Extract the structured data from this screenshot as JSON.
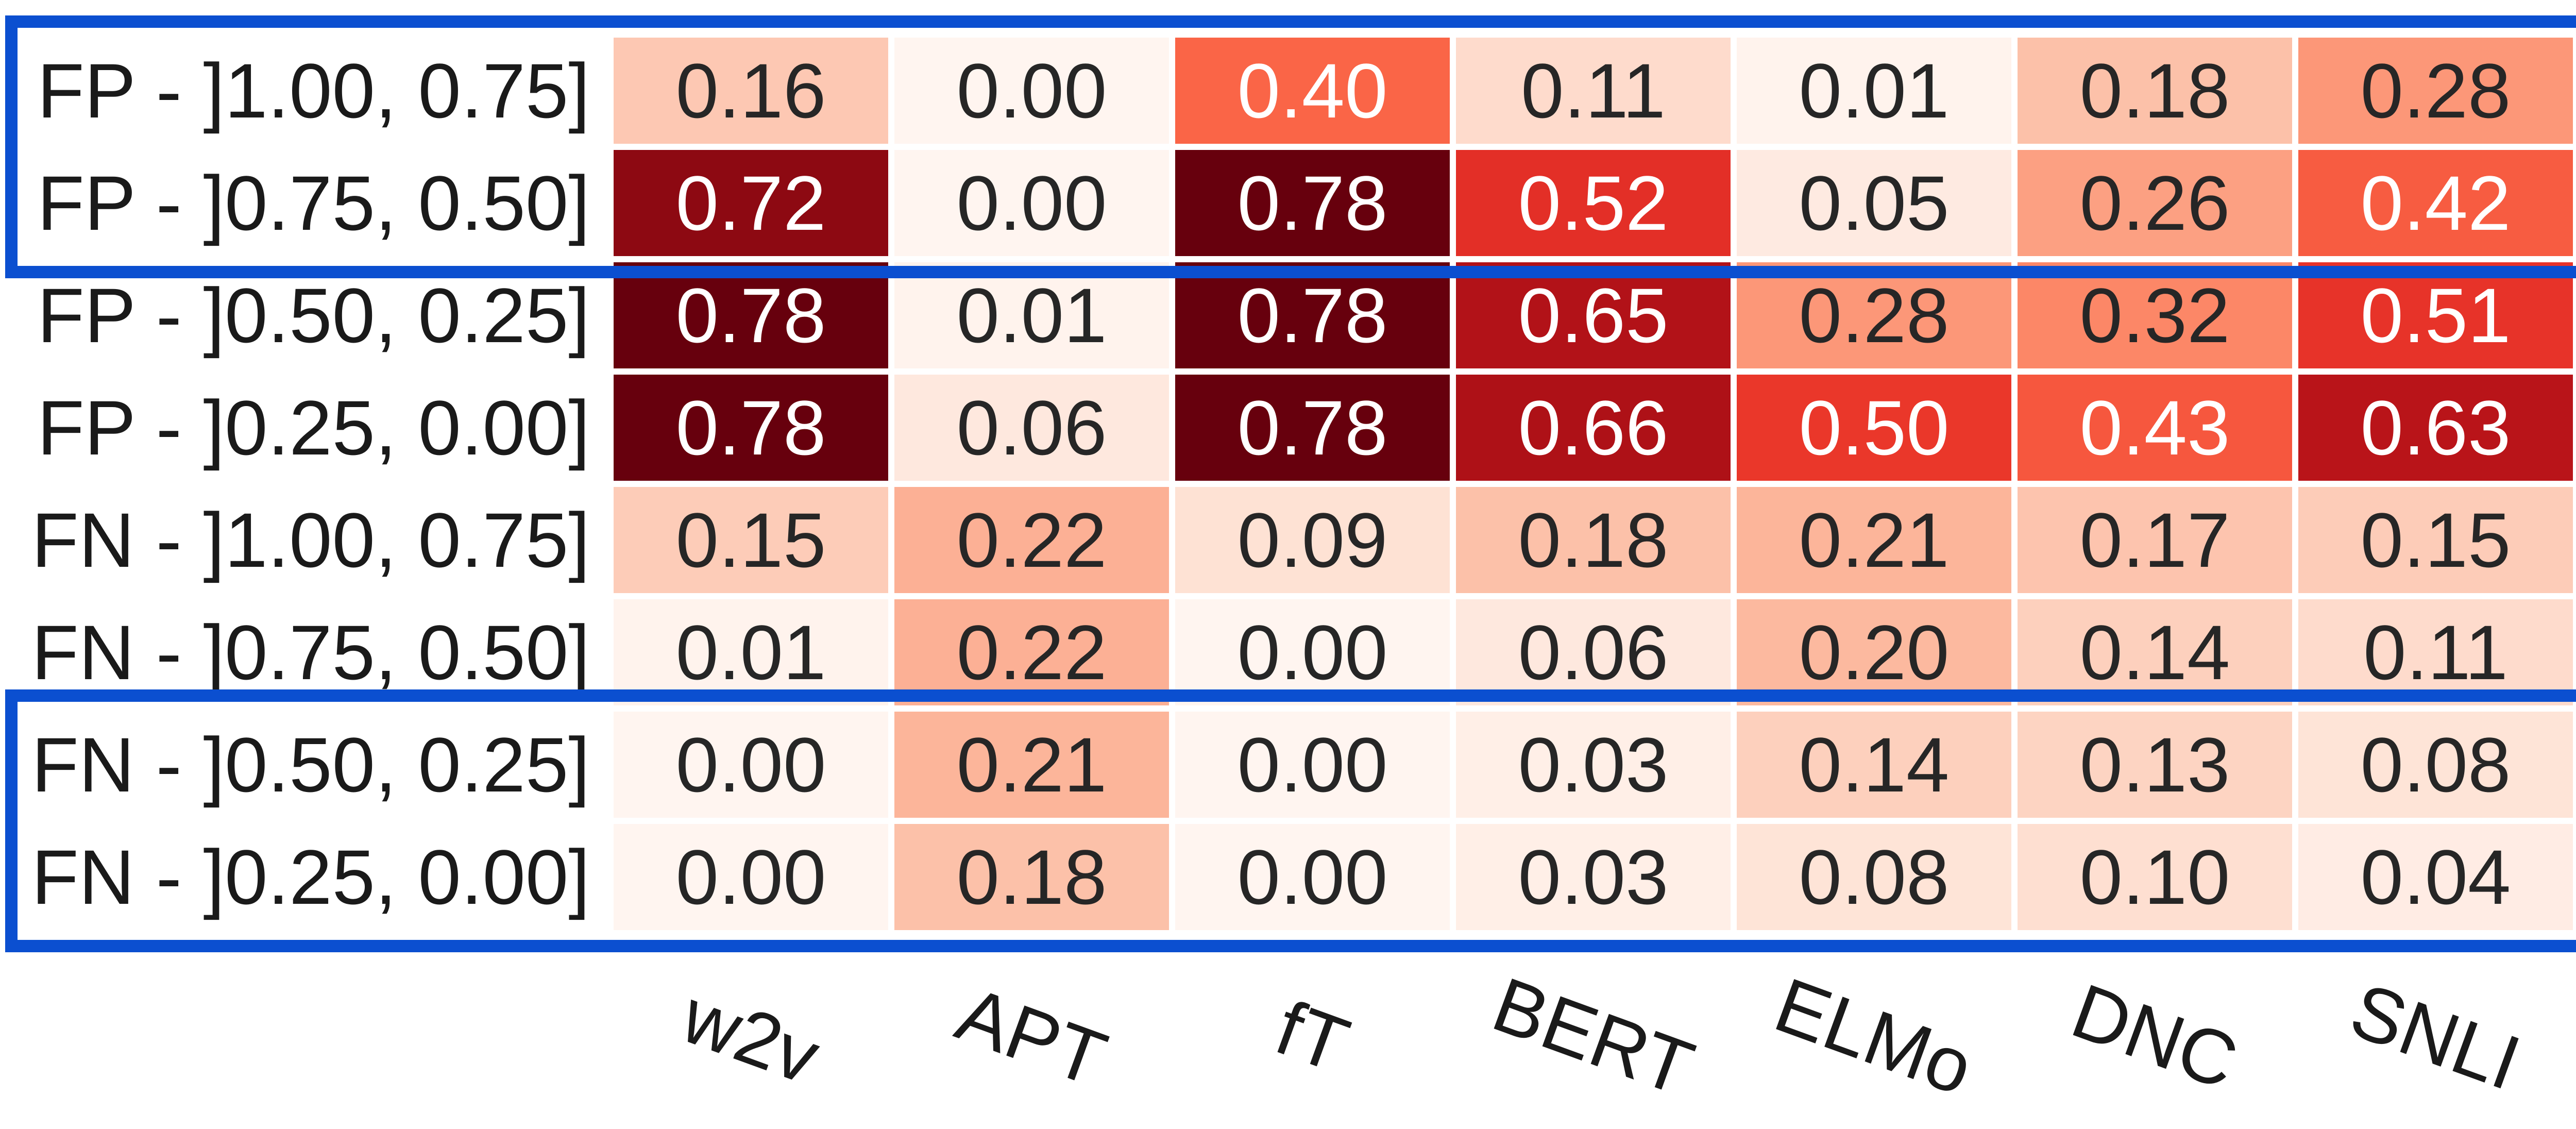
{
  "chart_data": {
    "type": "heatmap",
    "title": "",
    "xlabel": "",
    "ylabel": "",
    "columns": [
      "w2v",
      "APT",
      "fT",
      "BERT",
      "ELMo",
      "DNC",
      "SNLI"
    ],
    "rows": [
      "FP - ]1.00, 0.75]",
      "FP - ]0.75, 0.50]",
      "FP - ]0.50, 0.25]",
      "FP - ]0.25, 0.00]",
      "FN - ]1.00, 0.75]",
      "FN - ]0.75, 0.50]",
      "FN - ]0.50, 0.25]",
      "FN - ]0.25, 0.00]"
    ],
    "values": [
      [
        0.16,
        0.0,
        0.4,
        0.11,
        0.01,
        0.18,
        0.28
      ],
      [
        0.72,
        0.0,
        0.78,
        0.52,
        0.05,
        0.26,
        0.42
      ],
      [
        0.78,
        0.01,
        0.78,
        0.65,
        0.28,
        0.32,
        0.51
      ],
      [
        0.78,
        0.06,
        0.78,
        0.66,
        0.5,
        0.43,
        0.63
      ],
      [
        0.15,
        0.22,
        0.09,
        0.18,
        0.21,
        0.17,
        0.15
      ],
      [
        0.01,
        0.22,
        0.0,
        0.06,
        0.2,
        0.14,
        0.11
      ],
      [
        0.0,
        0.21,
        0.0,
        0.03,
        0.14,
        0.13,
        0.08
      ],
      [
        0.0,
        0.18,
        0.0,
        0.03,
        0.08,
        0.1,
        0.04
      ]
    ],
    "value_labels": [
      [
        "0.16",
        "0.00",
        "0.40",
        "0.11",
        "0.01",
        "0.18",
        "0.28"
      ],
      [
        "0.72",
        "0.00",
        "0.78",
        "0.52",
        "0.05",
        "0.26",
        "0.42"
      ],
      [
        "0.78",
        "0.01",
        "0.78",
        "0.65",
        "0.28",
        "0.32",
        "0.51"
      ],
      [
        "0.78",
        "0.06",
        "0.78",
        "0.66",
        "0.50",
        "0.43",
        "0.63"
      ],
      [
        "0.15",
        "0.22",
        "0.09",
        "0.18",
        "0.21",
        "0.17",
        "0.15"
      ],
      [
        "0.01",
        "0.22",
        "0.00",
        "0.06",
        "0.20",
        "0.14",
        "0.11"
      ],
      [
        "0.00",
        "0.21",
        "0.00",
        "0.03",
        "0.14",
        "0.13",
        "0.08"
      ],
      [
        "0.00",
        "0.18",
        "0.00",
        "0.03",
        "0.08",
        "0.10",
        "0.04"
      ]
    ],
    "colormap": "Reds",
    "color_range": [
      0.0,
      0.78
    ],
    "highlight_color": "#0b4fd0",
    "highlight_groups": [
      {
        "rows": [
          0,
          1
        ]
      },
      {
        "rows": [
          6,
          7
        ]
      }
    ],
    "x_tick_rotation": 20,
    "grid": false,
    "legend": "none"
  }
}
